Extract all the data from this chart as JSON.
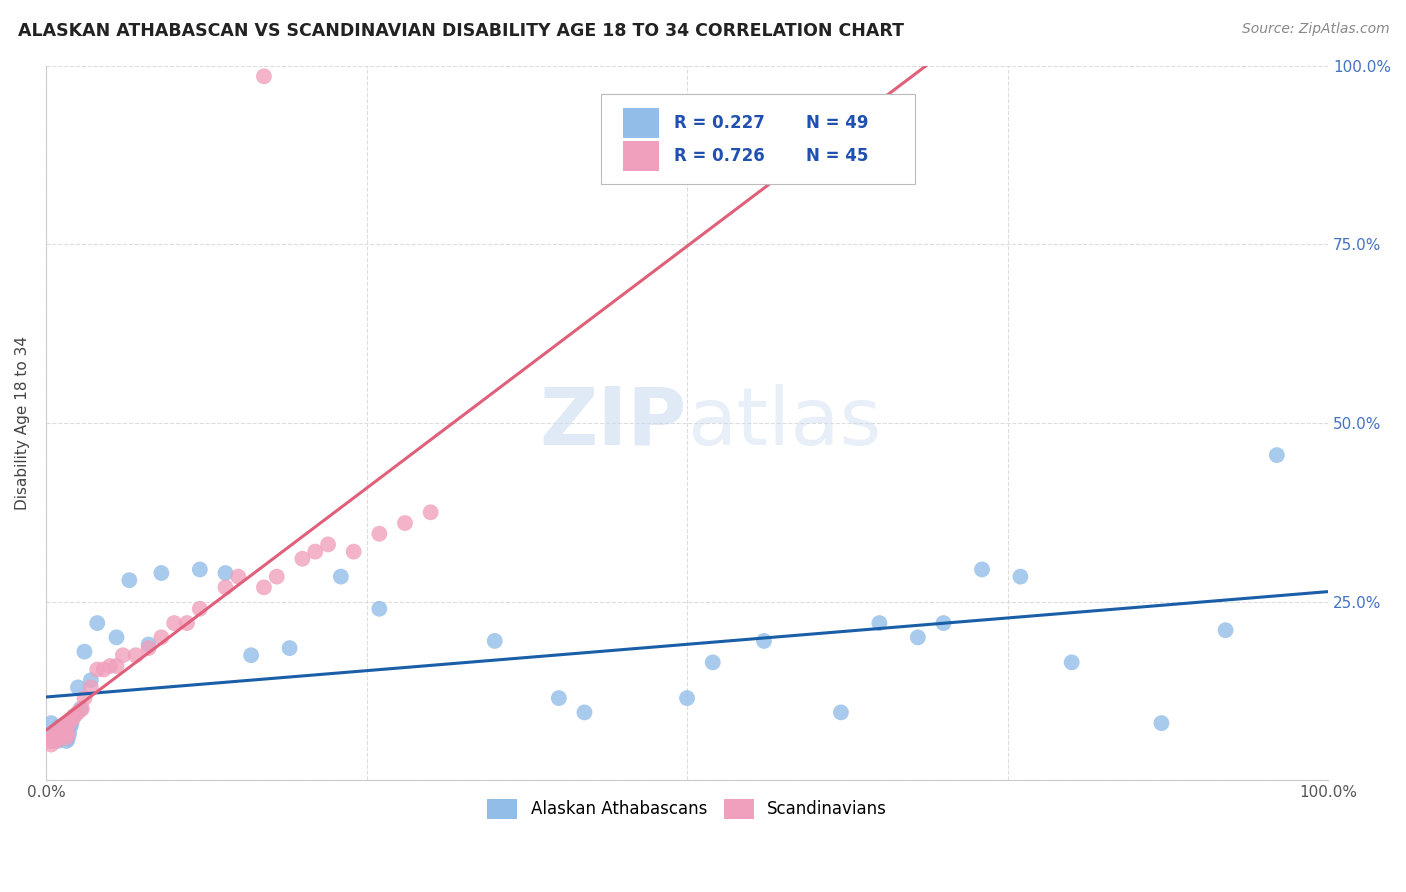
{
  "title": "ALASKAN ATHABASCAN VS SCANDINAVIAN DISABILITY AGE 18 TO 34 CORRELATION CHART",
  "source": "Source: ZipAtlas.com",
  "ylabel": "Disability Age 18 to 34",
  "xlim": [
    0,
    1.0
  ],
  "ylim": [
    0,
    1.0
  ],
  "watermark": "ZIPatlas",
  "color_blue": "#92BDE8",
  "color_pink": "#F0A0BC",
  "line_blue": "#1A5EA8",
  "line_pink": "#E0607A",
  "background_color": "#FFFFFF",
  "grid_color": "#DDDDDD",
  "athabascan_x": [
    0.004,
    0.005,
    0.006,
    0.007,
    0.008,
    0.009,
    0.01,
    0.011,
    0.012,
    0.013,
    0.014,
    0.015,
    0.016,
    0.017,
    0.018,
    0.019,
    0.02,
    0.022,
    0.025,
    0.027,
    0.03,
    0.035,
    0.04,
    0.055,
    0.065,
    0.08,
    0.09,
    0.12,
    0.14,
    0.16,
    0.19,
    0.23,
    0.26,
    0.35,
    0.4,
    0.42,
    0.5,
    0.52,
    0.56,
    0.62,
    0.65,
    0.68,
    0.7,
    0.73,
    0.76,
    0.8,
    0.87,
    0.92,
    0.96
  ],
  "athabascan_y": [
    0.08,
    0.055,
    0.065,
    0.06,
    0.07,
    0.055,
    0.075,
    0.065,
    0.058,
    0.068,
    0.06,
    0.072,
    0.055,
    0.058,
    0.065,
    0.075,
    0.08,
    0.09,
    0.13,
    0.1,
    0.18,
    0.14,
    0.22,
    0.2,
    0.28,
    0.19,
    0.29,
    0.295,
    0.29,
    0.175,
    0.185,
    0.285,
    0.24,
    0.195,
    0.115,
    0.095,
    0.115,
    0.165,
    0.195,
    0.095,
    0.22,
    0.2,
    0.22,
    0.295,
    0.285,
    0.165,
    0.08,
    0.21,
    0.455
  ],
  "scandinavian_x": [
    0.003,
    0.004,
    0.005,
    0.006,
    0.007,
    0.008,
    0.009,
    0.01,
    0.011,
    0.012,
    0.013,
    0.014,
    0.015,
    0.016,
    0.017,
    0.018,
    0.02,
    0.022,
    0.025,
    0.028,
    0.03,
    0.035,
    0.04,
    0.045,
    0.05,
    0.055,
    0.06,
    0.07,
    0.08,
    0.09,
    0.1,
    0.11,
    0.12,
    0.14,
    0.15,
    0.17,
    0.18,
    0.2,
    0.21,
    0.22,
    0.24,
    0.26,
    0.28,
    0.3,
    0.17
  ],
  "scandinavian_y": [
    0.055,
    0.05,
    0.058,
    0.06,
    0.055,
    0.065,
    0.06,
    0.065,
    0.058,
    0.07,
    0.062,
    0.068,
    0.075,
    0.06,
    0.065,
    0.08,
    0.085,
    0.09,
    0.095,
    0.1,
    0.115,
    0.13,
    0.155,
    0.155,
    0.16,
    0.16,
    0.175,
    0.175,
    0.185,
    0.2,
    0.22,
    0.22,
    0.24,
    0.27,
    0.285,
    0.27,
    0.285,
    0.31,
    0.32,
    0.33,
    0.32,
    0.345,
    0.36,
    0.375,
    0.985
  ]
}
